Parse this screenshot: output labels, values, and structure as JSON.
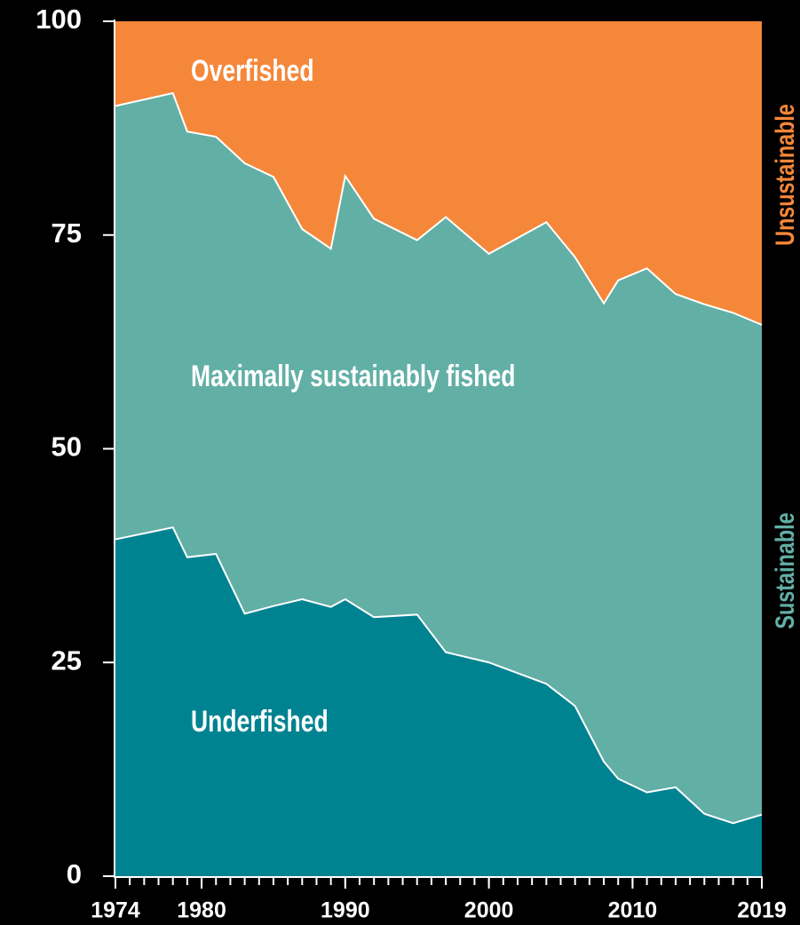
{
  "chart_data": {
    "type": "area",
    "stacked": true,
    "x": [
      1974,
      1978,
      1979,
      1981,
      1983,
      1985,
      1987,
      1989,
      1990,
      1992,
      1995,
      1997,
      2000,
      2004,
      2006,
      2008,
      2009,
      2011,
      2013,
      2015,
      2017,
      2019
    ],
    "series": [
      {
        "name": "Underfished",
        "color": "#008391",
        "values": [
          39.4,
          40.8,
          37.3,
          37.7,
          30.7,
          31.6,
          32.4,
          31.5,
          32.4,
          30.3,
          30.6,
          26.2,
          25.0,
          22.5,
          19.9,
          13.4,
          11.4,
          9.8,
          10.4,
          7.3,
          6.2,
          7.2
        ]
      },
      {
        "name": "Maximally sustainably fished",
        "color": "#62afa6",
        "values": [
          50.7,
          50.8,
          49.8,
          48.8,
          52.7,
          50.2,
          43.3,
          41.9,
          49.5,
          46.6,
          43.8,
          50.9,
          47.8,
          54.0,
          52.5,
          53.6,
          58.3,
          61.3,
          57.7,
          59.6,
          59.7,
          57.3
        ]
      },
      {
        "name": "Overfished",
        "color": "#f5873a",
        "values": [
          9.9,
          8.4,
          12.9,
          13.5,
          16.6,
          18.2,
          24.3,
          26.6,
          18.1,
          23.1,
          25.6,
          22.9,
          27.2,
          23.5,
          27.6,
          33.0,
          30.3,
          28.9,
          31.9,
          33.1,
          34.1,
          35.5
        ]
      }
    ],
    "annotations": [
      {
        "text": "Unsustainable",
        "color": "#f5873a"
      },
      {
        "text": "Sustainable",
        "color": "#62afa6"
      }
    ],
    "xlim": [
      1974,
      2019
    ],
    "xticks": [
      1974,
      1980,
      1990,
      2000,
      2010,
      2019
    ],
    "ylim": [
      0,
      100
    ],
    "yticks": [
      0,
      25,
      50,
      75,
      100
    ]
  }
}
